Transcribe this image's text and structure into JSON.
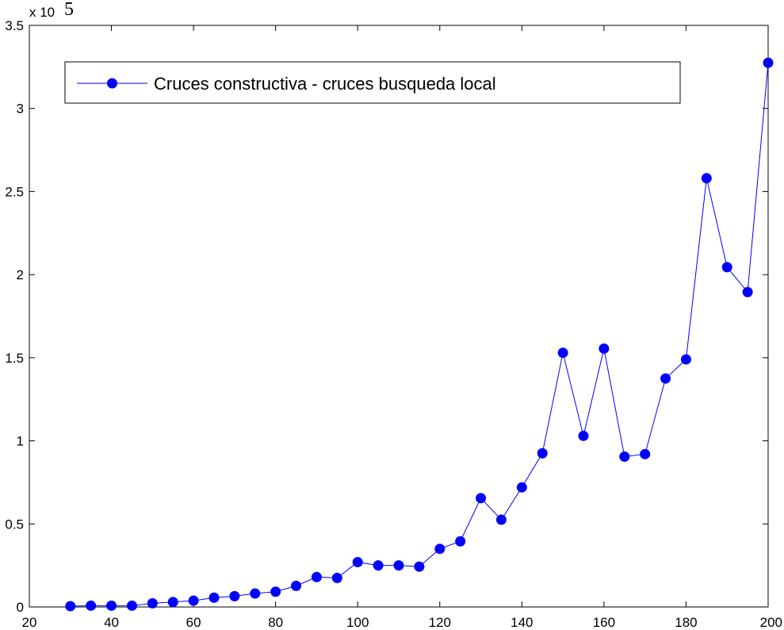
{
  "chart_data": {
    "type": "line",
    "title": "",
    "xlabel": "",
    "ylabel": "",
    "xlim": [
      20,
      200
    ],
    "ylim": [
      0,
      3.5
    ],
    "x_ticks": [
      20,
      40,
      60,
      80,
      100,
      120,
      140,
      160,
      180,
      200
    ],
    "x_tick_labels": [
      "20",
      "40",
      "60",
      "80",
      "100",
      "120",
      "140",
      "160",
      "180",
      "200"
    ],
    "y_ticks": [
      0,
      0.5,
      1,
      1.5,
      2,
      2.5,
      3,
      3.5
    ],
    "y_tick_labels": [
      "0",
      "0.5",
      "1",
      "1.5",
      "2",
      "2.5",
      "3",
      "3.5"
    ],
    "y_multiplier_base": "x 10",
    "y_multiplier_power": "5",
    "grid": false,
    "legend_position": "top-left",
    "series_color": "#0000ff",
    "series": [
      {
        "name": "Cruces constructiva - cruces busqueda local",
        "x": [
          30,
          35,
          40,
          45,
          50,
          55,
          60,
          65,
          70,
          75,
          80,
          85,
          90,
          95,
          100,
          105,
          110,
          115,
          120,
          125,
          130,
          135,
          140,
          145,
          150,
          155,
          160,
          165,
          170,
          175,
          180,
          185,
          190,
          195,
          200
        ],
        "values": [
          0.005,
          0.008,
          0.008,
          0.008,
          0.022,
          0.03,
          0.038,
          0.056,
          0.065,
          0.081,
          0.092,
          0.127,
          0.18,
          0.175,
          0.27,
          0.25,
          0.25,
          0.243,
          0.35,
          0.395,
          0.655,
          0.525,
          0.72,
          0.925,
          1.53,
          1.03,
          1.555,
          0.905,
          0.92,
          1.375,
          1.49,
          2.58,
          2.045,
          1.895,
          3.275
        ]
      }
    ]
  }
}
